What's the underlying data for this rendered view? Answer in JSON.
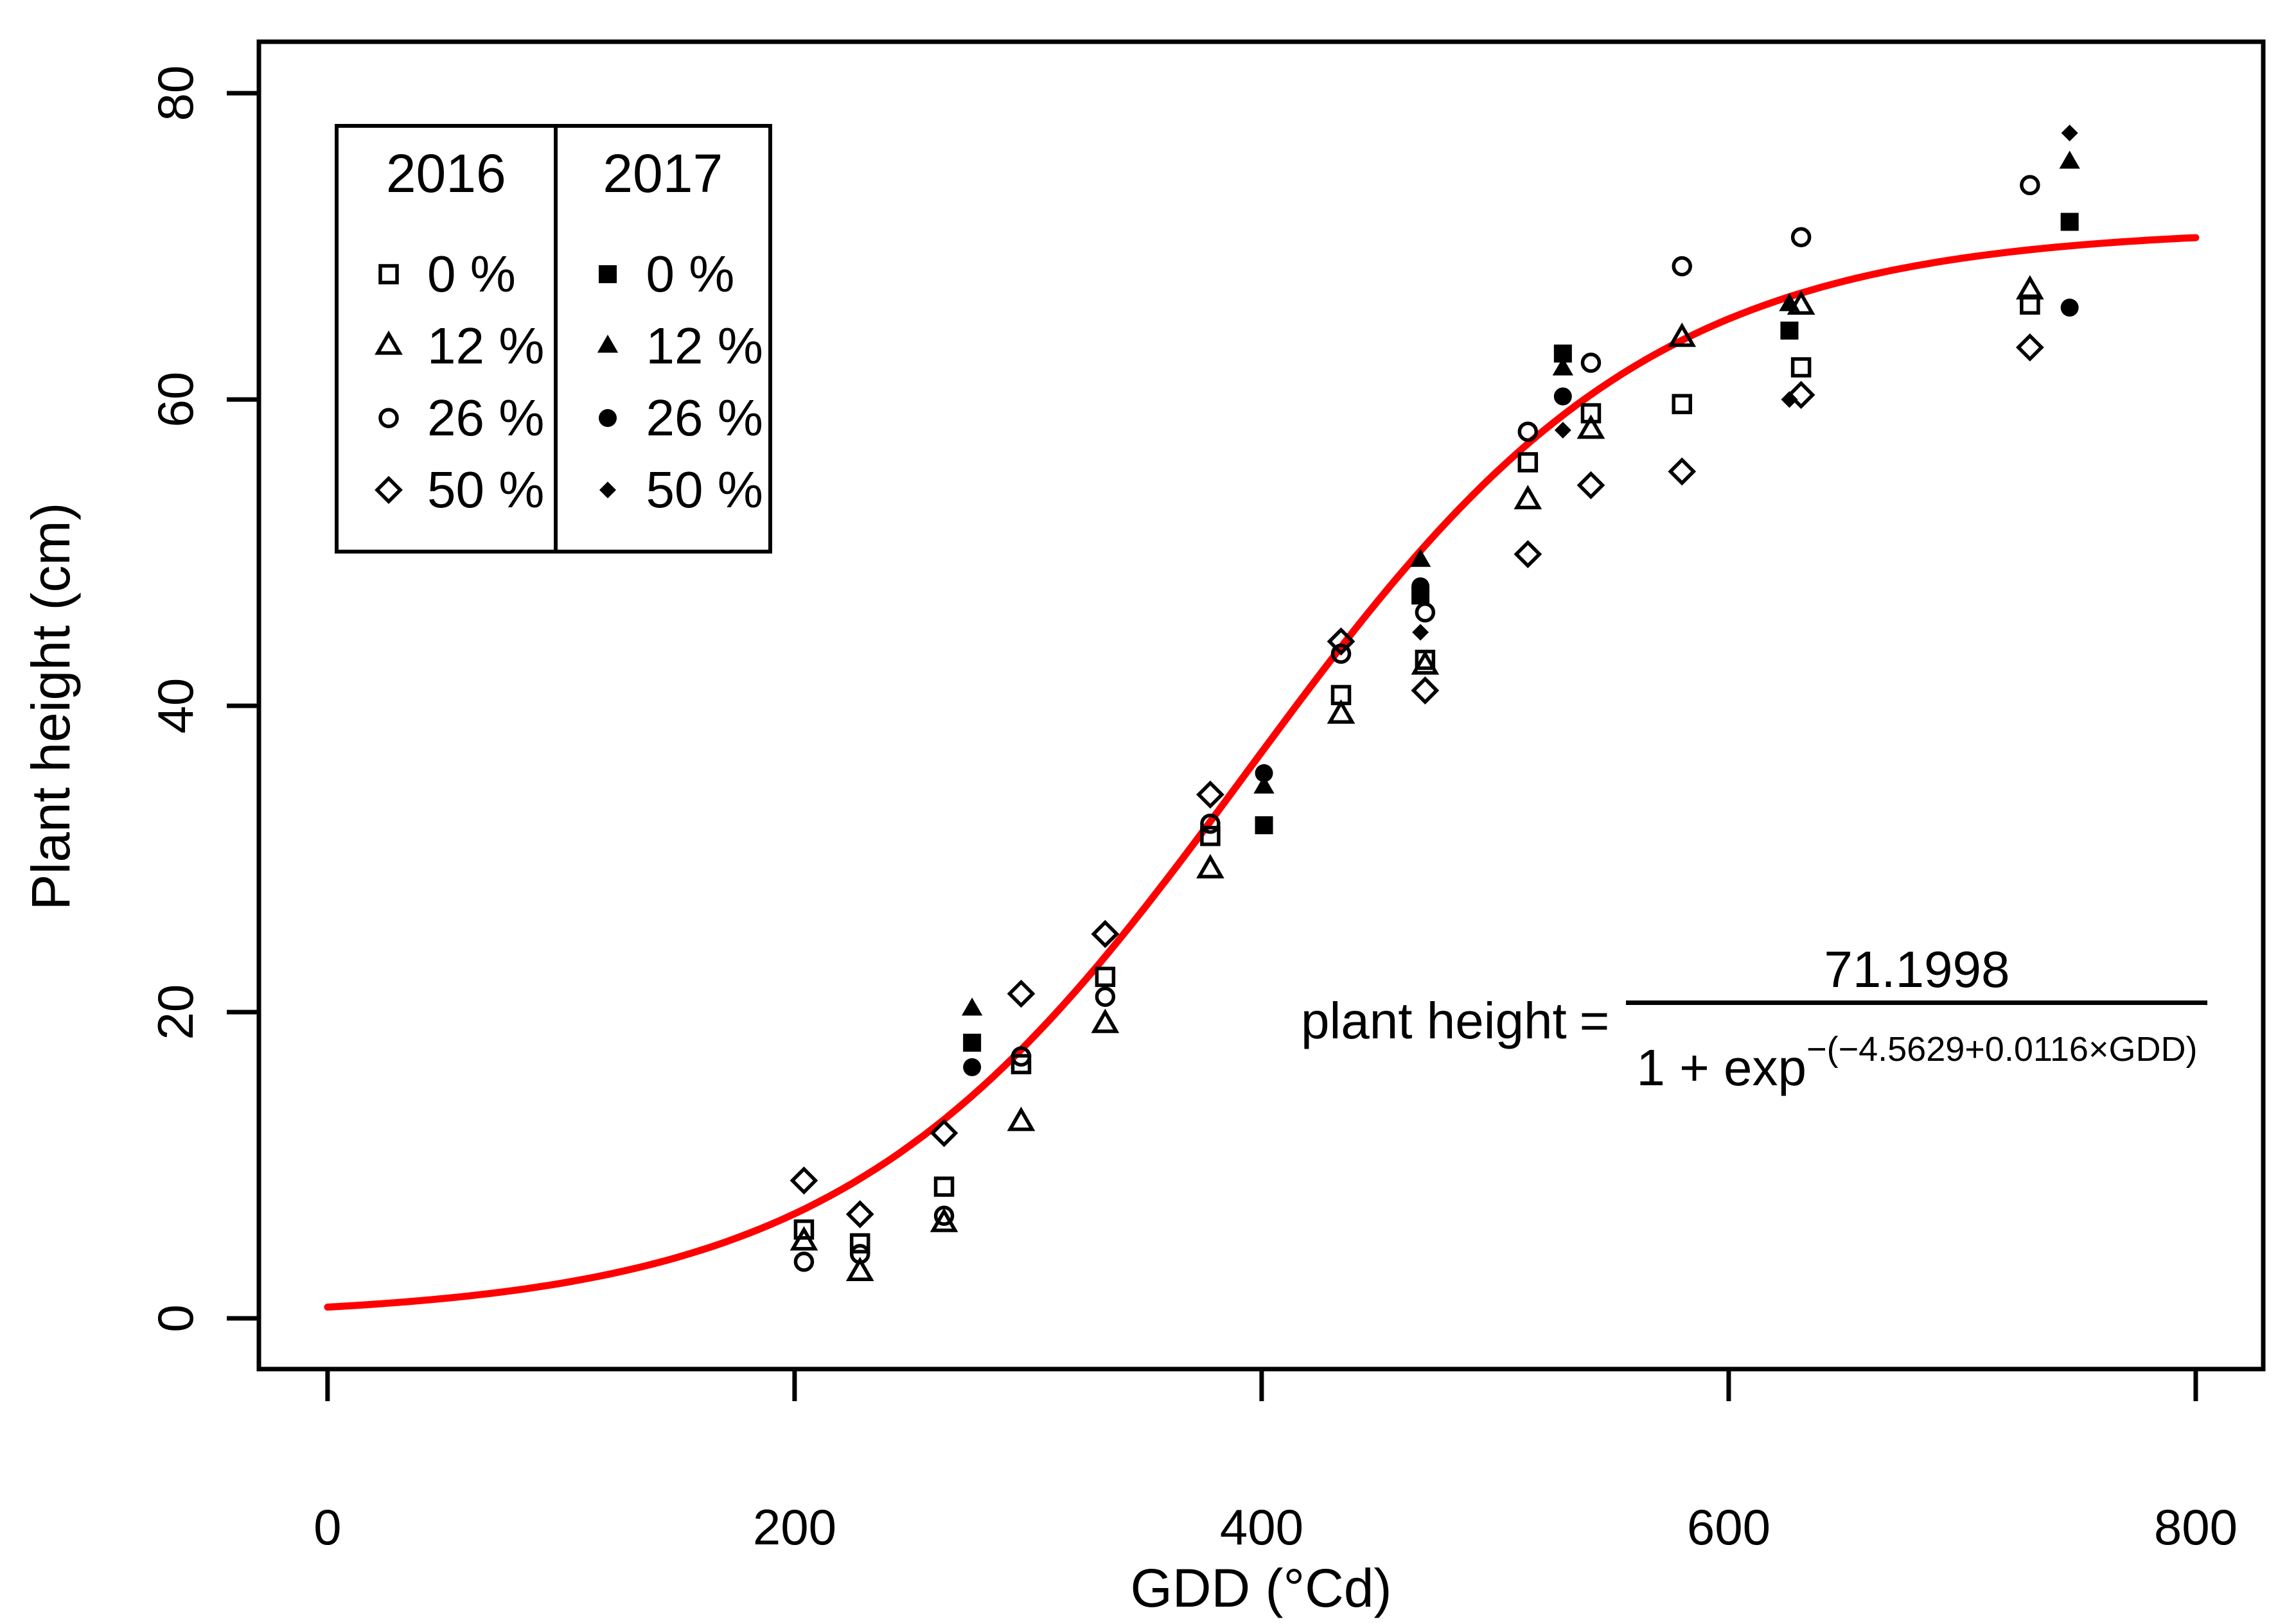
{
  "figure": {
    "background": "#ffffff",
    "foreground": "#000000"
  },
  "chart_data": {
    "type": "scatter",
    "title": "",
    "xlabel": "GDD (°Cd)",
    "ylabel": "Plant height (cm)",
    "xlim": [
      -29.4,
      828.9
    ],
    "ylim": [
      -3.31,
      83.36
    ],
    "xticks": [
      0,
      200,
      400,
      600,
      800
    ],
    "yticks": [
      0,
      20,
      40,
      60,
      80
    ],
    "grid": false,
    "legend": {
      "position": "top-left",
      "columns": [
        {
          "year": "2016",
          "style": "open"
        },
        {
          "year": "2017",
          "style": "filled"
        }
      ],
      "rows": [
        {
          "label": "0 %",
          "marker": "square"
        },
        {
          "label": "12 %",
          "marker": "triangle"
        },
        {
          "label": "26 %",
          "marker": "circle"
        },
        {
          "label": "50 %",
          "marker": "diamond"
        }
      ]
    },
    "fit_curve": {
      "color": "#ff0000",
      "model": "logistic",
      "asymptote": 71.1998,
      "intercept": -4.5629,
      "slope": 0.0116,
      "domain": [
        0,
        800
      ]
    },
    "equation": {
      "lhs": "plant height",
      "equals": "=",
      "numerator": "71.1998",
      "den_base": "1 + exp",
      "exponent": "−(−4.5629+0.0116×GDD)"
    },
    "point_format": [
      "gdd_degCd",
      "height_cm",
      "marker"
    ],
    "series": [
      {
        "name": "2016",
        "style": "open",
        "points": [
          [
            204,
            9.0,
            "diamond"
          ],
          [
            204,
            5.8,
            "square"
          ],
          [
            204,
            5.0,
            "triangle"
          ],
          [
            204,
            3.7,
            "circle"
          ],
          [
            228,
            6.8,
            "diamond"
          ],
          [
            228,
            4.9,
            "square"
          ],
          [
            228,
            4.2,
            "circle"
          ],
          [
            228,
            3.0,
            "triangle"
          ],
          [
            264,
            12.1,
            "diamond"
          ],
          [
            264,
            8.6,
            "square"
          ],
          [
            264,
            6.7,
            "circle"
          ],
          [
            264,
            6.2,
            "triangle"
          ],
          [
            297,
            21.2,
            "diamond"
          ],
          [
            297,
            17.1,
            "circle"
          ],
          [
            297,
            16.6,
            "square"
          ],
          [
            297,
            12.8,
            "triangle"
          ],
          [
            333,
            25.1,
            "diamond"
          ],
          [
            333,
            22.3,
            "square"
          ],
          [
            333,
            21.0,
            "circle"
          ],
          [
            333,
            19.2,
            "triangle"
          ],
          [
            378,
            34.2,
            "diamond"
          ],
          [
            378,
            32.3,
            "circle"
          ],
          [
            378,
            31.5,
            "square"
          ],
          [
            378,
            29.3,
            "triangle"
          ],
          [
            434,
            44.2,
            "diamond"
          ],
          [
            434,
            43.4,
            "circle"
          ],
          [
            434,
            40.7,
            "square"
          ],
          [
            434,
            39.4,
            "triangle"
          ],
          [
            470,
            46.1,
            "circle"
          ],
          [
            470,
            43.0,
            "square"
          ],
          [
            470,
            42.6,
            "triangle"
          ],
          [
            470,
            41.0,
            "diamond"
          ],
          [
            514,
            57.9,
            "circle"
          ],
          [
            514,
            55.9,
            "square"
          ],
          [
            514,
            53.4,
            "triangle"
          ],
          [
            514,
            49.9,
            "diamond"
          ],
          [
            541,
            62.4,
            "circle"
          ],
          [
            541,
            59.1,
            "square"
          ],
          [
            541,
            58.0,
            "triangle"
          ],
          [
            541,
            54.4,
            "diamond"
          ],
          [
            580,
            68.7,
            "circle"
          ],
          [
            580,
            64.0,
            "triangle"
          ],
          [
            580,
            59.7,
            "square"
          ],
          [
            580,
            55.3,
            "diamond"
          ],
          [
            631,
            70.6,
            "circle"
          ],
          [
            631,
            66.1,
            "triangle"
          ],
          [
            631,
            62.1,
            "square"
          ],
          [
            631,
            60.3,
            "diamond"
          ],
          [
            729,
            74.0,
            "circle"
          ],
          [
            729,
            67.1,
            "triangle"
          ],
          [
            729,
            66.2,
            "square"
          ],
          [
            729,
            63.4,
            "diamond"
          ]
        ]
      },
      {
        "name": "2017",
        "style": "filled",
        "points": [
          [
            276,
            20.2,
            "triangle"
          ],
          [
            276,
            18.0,
            "square"
          ],
          [
            276,
            16.4,
            "circle"
          ],
          [
            401,
            35.6,
            "circle"
          ],
          [
            401,
            34.7,
            "triangle"
          ],
          [
            401,
            32.2,
            "square"
          ],
          [
            468,
            49.5,
            "triangle"
          ],
          [
            468,
            47.8,
            "circle"
          ],
          [
            468,
            47.2,
            "square"
          ],
          [
            468,
            44.8,
            "diamond"
          ],
          [
            529,
            63.0,
            "square"
          ],
          [
            529,
            62.0,
            "triangle"
          ],
          [
            529,
            60.2,
            "circle"
          ],
          [
            529,
            58.0,
            "diamond"
          ],
          [
            626,
            66.2,
            "triangle"
          ],
          [
            626,
            64.5,
            "square"
          ],
          [
            626,
            60.0,
            "diamond"
          ],
          [
            746,
            77.4,
            "diamond"
          ],
          [
            746,
            75.5,
            "triangle"
          ],
          [
            746,
            71.6,
            "square"
          ],
          [
            746,
            66.0,
            "circle"
          ]
        ]
      }
    ]
  }
}
